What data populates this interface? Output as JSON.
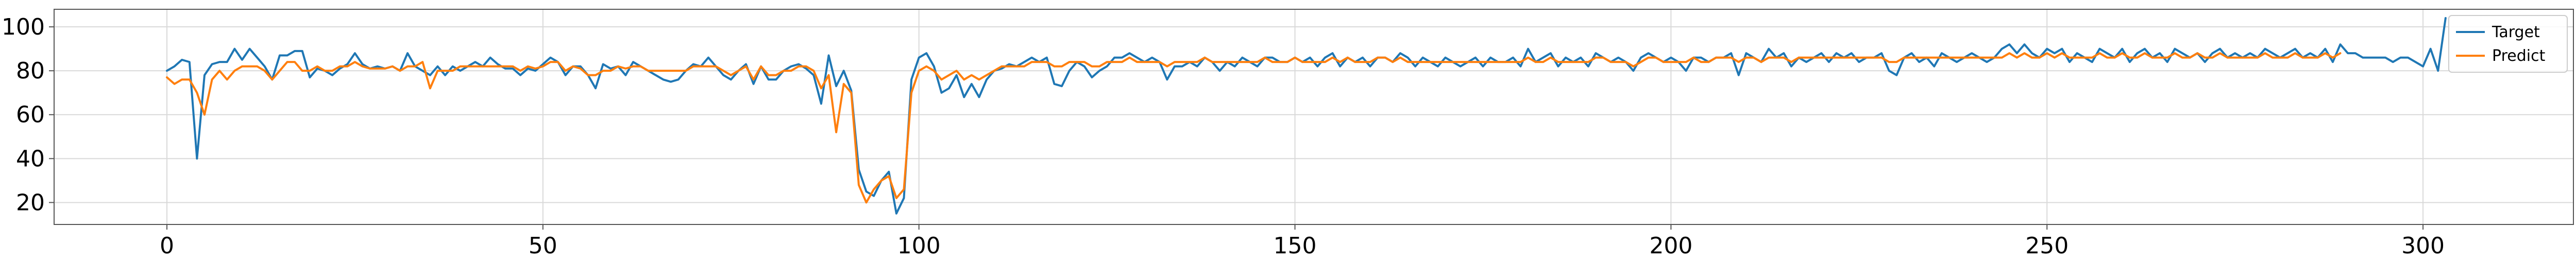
{
  "chart_data": {
    "type": "line",
    "title": "",
    "xlabel": "",
    "ylabel": "",
    "xlim": [
      -15,
      320
    ],
    "ylim": [
      10,
      108
    ],
    "xticks": [
      0,
      50,
      100,
      150,
      200,
      250,
      300
    ],
    "yticks": [
      20,
      40,
      60,
      80,
      100
    ],
    "grid": true,
    "legend_position": "top-right",
    "series": [
      {
        "name": "Target",
        "color": "#1f77b4",
        "values": [
          80,
          82,
          85,
          84,
          40,
          78,
          83,
          84,
          84,
          90,
          85,
          90,
          86,
          82,
          76,
          87,
          87,
          89,
          89,
          77,
          81,
          80,
          78,
          81,
          83,
          88,
          83,
          81,
          82,
          81,
          82,
          80,
          88,
          82,
          80,
          78,
          82,
          78,
          82,
          80,
          82,
          84,
          82,
          86,
          83,
          81,
          81,
          78,
          81,
          80,
          83,
          86,
          84,
          78,
          82,
          82,
          78,
          72,
          83,
          81,
          82,
          78,
          84,
          82,
          80,
          78,
          76,
          75,
          76,
          80,
          83,
          82,
          86,
          82,
          78,
          76,
          80,
          83,
          74,
          82,
          76,
          76,
          80,
          82,
          83,
          81,
          78,
          65,
          87,
          73,
          80,
          71,
          35,
          25,
          23,
          30,
          34,
          15,
          22,
          76,
          86,
          88,
          82,
          70,
          72,
          78,
          68,
          74,
          68,
          76,
          80,
          81,
          83,
          82,
          84,
          86,
          84,
          86,
          74,
          73,
          80,
          84,
          82,
          77,
          80,
          82,
          86,
          86,
          88,
          86,
          84,
          86,
          84,
          76,
          82,
          82,
          84,
          82,
          86,
          84,
          80,
          84,
          82,
          86,
          84,
          82,
          86,
          86,
          84,
          84,
          86,
          84,
          86,
          82,
          86,
          88,
          82,
          86,
          84,
          86,
          82,
          86,
          86,
          84,
          88,
          86,
          82,
          86,
          84,
          82,
          86,
          84,
          82,
          84,
          86,
          82,
          86,
          84,
          84,
          86,
          82,
          90,
          84,
          86,
          88,
          82,
          86,
          84,
          86,
          82,
          88,
          86,
          84,
          86,
          84,
          80,
          86,
          88,
          86,
          84,
          86,
          84,
          80,
          86,
          86,
          84,
          86,
          86,
          88,
          78,
          88,
          86,
          84,
          90,
          86,
          88,
          82,
          86,
          84,
          86,
          88,
          84,
          88,
          86,
          88,
          84,
          86,
          86,
          88,
          80,
          78,
          86,
          88,
          84,
          86,
          82,
          88,
          86,
          84,
          86,
          88,
          86,
          84,
          86,
          90,
          92,
          88,
          92,
          88,
          86,
          90,
          88,
          90,
          84,
          88,
          86,
          84,
          90,
          88,
          86,
          90,
          84,
          88,
          90,
          86,
          88,
          84,
          90,
          88,
          86,
          88,
          84,
          88,
          90,
          86,
          88,
          86,
          88,
          86,
          90,
          88,
          86,
          88,
          90,
          86,
          88,
          86,
          90,
          84,
          92,
          88,
          88,
          86,
          86,
          86,
          86,
          84,
          86,
          86,
          84,
          82,
          90,
          80,
          104
        ]
      },
      {
        "name": "Predict",
        "color": "#ff7f0e",
        "values": [
          77,
          74,
          76,
          76,
          70,
          60,
          76,
          80,
          76,
          80,
          82,
          82,
          82,
          80,
          76,
          80,
          84,
          84,
          80,
          80,
          82,
          80,
          80,
          82,
          82,
          84,
          82,
          81,
          81,
          81,
          82,
          80,
          82,
          82,
          84,
          72,
          80,
          80,
          80,
          82,
          82,
          82,
          82,
          82,
          82,
          82,
          82,
          80,
          82,
          81,
          82,
          84,
          84,
          80,
          82,
          81,
          78,
          78,
          80,
          80,
          82,
          81,
          82,
          82,
          80,
          80,
          80,
          80,
          80,
          80,
          82,
          82,
          82,
          82,
          80,
          78,
          80,
          82,
          76,
          82,
          78,
          78,
          80,
          80,
          82,
          82,
          80,
          72,
          78,
          52,
          74,
          70,
          28,
          20,
          26,
          30,
          32,
          22,
          26,
          70,
          80,
          82,
          80,
          76,
          78,
          80,
          76,
          78,
          76,
          78,
          80,
          82,
          82,
          82,
          82,
          84,
          84,
          84,
          82,
          82,
          84,
          84,
          84,
          82,
          82,
          84,
          84,
          84,
          86,
          84,
          84,
          84,
          84,
          82,
          84,
          84,
          84,
          84,
          86,
          84,
          84,
          84,
          84,
          84,
          84,
          84,
          86,
          84,
          84,
          84,
          86,
          84,
          84,
          84,
          84,
          86,
          84,
          86,
          84,
          84,
          84,
          86,
          86,
          84,
          86,
          84,
          84,
          84,
          84,
          84,
          84,
          84,
          84,
          84,
          84,
          84,
          84,
          84,
          84,
          84,
          84,
          86,
          84,
          84,
          86,
          84,
          84,
          84,
          84,
          84,
          86,
          86,
          84,
          84,
          84,
          82,
          84,
          86,
          86,
          84,
          84,
          84,
          84,
          86,
          84,
          84,
          86,
          86,
          86,
          84,
          86,
          86,
          84,
          86,
          86,
          86,
          84,
          86,
          86,
          86,
          86,
          86,
          86,
          86,
          86,
          86,
          86,
          86,
          86,
          84,
          84,
          86,
          86,
          86,
          86,
          86,
          86,
          86,
          86,
          86,
          86,
          86,
          86,
          86,
          86,
          88,
          86,
          88,
          86,
          86,
          88,
          86,
          88,
          86,
          86,
          86,
          86,
          88,
          86,
          86,
          88,
          86,
          86,
          88,
          86,
          86,
          86,
          88,
          86,
          86,
          88,
          86,
          86,
          88,
          86,
          86,
          86,
          86,
          86,
          88,
          86,
          86,
          86,
          88,
          86,
          86,
          86,
          88,
          86,
          88
        ]
      }
    ]
  }
}
